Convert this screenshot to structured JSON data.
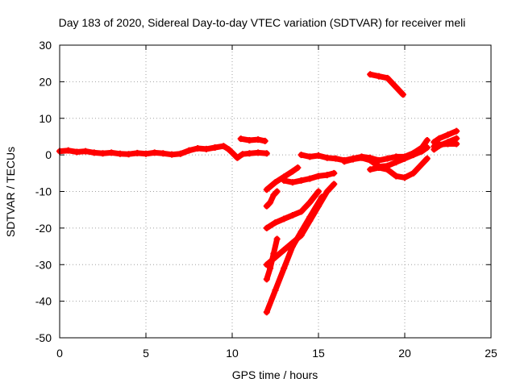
{
  "chart_data": {
    "type": "scatter",
    "title": "Day 183 of 2020, Sidereal Day-to-day VTEC variation (SDTVAR) for receiver meli",
    "xlabel": "GPS time / hours",
    "ylabel": "SDTVAR / TECUs",
    "xlim": [
      0,
      25
    ],
    "ylim": [
      -50,
      30
    ],
    "xticks": [
      0,
      5,
      10,
      15,
      20,
      25
    ],
    "yticks": [
      -50,
      -40,
      -30,
      -20,
      -10,
      0,
      10,
      20,
      30
    ],
    "xtick_labels": [
      "0",
      "5",
      "10",
      "15",
      "20",
      "25"
    ],
    "ytick_labels": [
      "-50",
      "-40",
      "-30",
      "-20",
      "-10",
      "0",
      "10",
      "20",
      "30"
    ],
    "grid": true,
    "marker": "plus",
    "color": "#ff0000",
    "series": [
      {
        "name": "main-baseline",
        "points": [
          [
            0,
            1
          ],
          [
            0.5,
            1.2
          ],
          [
            1,
            0.8
          ],
          [
            1.5,
            1
          ],
          [
            2,
            0.6
          ],
          [
            2.5,
            0.4
          ],
          [
            3,
            0.6
          ],
          [
            3.5,
            0.3
          ],
          [
            4,
            0.2
          ],
          [
            4.5,
            0.5
          ],
          [
            5,
            0.3
          ],
          [
            5.5,
            0.6
          ],
          [
            6,
            0.4
          ],
          [
            6.5,
            0.1
          ],
          [
            7,
            0.3
          ],
          [
            7.5,
            1.2
          ],
          [
            8,
            1.8
          ],
          [
            8.5,
            1.6
          ],
          [
            9,
            2
          ],
          [
            9.5,
            2.4
          ],
          [
            9.8,
            1.5
          ],
          [
            10,
            0.6
          ],
          [
            10.3,
            -0.8
          ],
          [
            10.6,
            0.2
          ],
          [
            11,
            0.4
          ],
          [
            11.5,
            0.6
          ],
          [
            12,
            0.4
          ]
        ]
      },
      {
        "name": "arc-above-11h",
        "points": [
          [
            10.5,
            4.4
          ],
          [
            11,
            4
          ],
          [
            11.5,
            4.2
          ],
          [
            11.9,
            3.8
          ]
        ]
      },
      {
        "name": "arc-afternoon-baseline",
        "points": [
          [
            14,
            0
          ],
          [
            14.5,
            -0.5
          ],
          [
            15,
            -0.2
          ],
          [
            15.5,
            -0.8
          ],
          [
            16,
            -1
          ],
          [
            16.5,
            -1.5
          ],
          [
            17,
            -1
          ],
          [
            17.5,
            -0.5
          ],
          [
            18,
            -0.8
          ],
          [
            18.5,
            -1.5
          ],
          [
            19,
            -1
          ],
          [
            19.5,
            -0.5
          ],
          [
            20,
            -0.5
          ],
          [
            20.5,
            0.5
          ],
          [
            21,
            2
          ],
          [
            21.3,
            4
          ]
        ]
      },
      {
        "name": "arc-mid-afternoon",
        "points": [
          [
            16.5,
            -1.8
          ],
          [
            17,
            -1.2
          ],
          [
            17.5,
            -0.8
          ],
          [
            18,
            -1.5
          ],
          [
            18.5,
            -3.2
          ],
          [
            19,
            -3
          ],
          [
            19.5,
            -2
          ],
          [
            20,
            -1
          ],
          [
            20.5,
            0
          ],
          [
            21,
            1
          ],
          [
            21.3,
            2
          ]
        ]
      },
      {
        "name": "arc-late-dip",
        "points": [
          [
            18,
            -4
          ],
          [
            18.5,
            -3.5
          ],
          [
            19,
            -4
          ],
          [
            19.5,
            -5.8
          ],
          [
            20,
            -6.2
          ],
          [
            20.5,
            -5
          ],
          [
            21,
            -2.5
          ],
          [
            21.3,
            -1
          ]
        ]
      },
      {
        "name": "arc-late-1",
        "points": [
          [
            21.7,
            1.5
          ],
          [
            22,
            2.5
          ],
          [
            22.5,
            3.5
          ],
          [
            23,
            4.5
          ]
        ]
      },
      {
        "name": "arc-late-2",
        "points": [
          [
            21.7,
            3.5
          ],
          [
            22,
            4.5
          ],
          [
            22.5,
            5.5
          ],
          [
            23,
            6.5
          ]
        ]
      },
      {
        "name": "arc-late-3",
        "points": [
          [
            21.7,
            2.3
          ],
          [
            22,
            2.8
          ],
          [
            22.5,
            3
          ],
          [
            23,
            3
          ]
        ]
      },
      {
        "name": "arc-high",
        "points": [
          [
            18,
            22
          ],
          [
            18.5,
            21.5
          ],
          [
            19,
            21
          ],
          [
            19.5,
            18.5
          ],
          [
            19.9,
            16.5
          ]
        ]
      },
      {
        "name": "arc-drop-1",
        "points": [
          [
            12,
            -9.5
          ],
          [
            12.5,
            -7.5
          ],
          [
            13,
            -6
          ],
          [
            13.5,
            -4.5
          ],
          [
            13.8,
            -3.5
          ]
        ]
      },
      {
        "name": "arc-drop-2",
        "points": [
          [
            12,
            -14
          ],
          [
            12.2,
            -13
          ],
          [
            12.4,
            -11
          ],
          [
            12.6,
            -10
          ]
        ]
      },
      {
        "name": "arc-drop-3",
        "points": [
          [
            12,
            -20
          ],
          [
            12.5,
            -18.5
          ],
          [
            13,
            -17.5
          ],
          [
            13.5,
            -16.5
          ],
          [
            14,
            -15.5
          ],
          [
            14.5,
            -13
          ],
          [
            15,
            -10
          ]
        ]
      },
      {
        "name": "arc-drop-4",
        "points": [
          [
            13,
            -7
          ],
          [
            13.5,
            -7.5
          ],
          [
            14,
            -7
          ],
          [
            14.5,
            -6.5
          ],
          [
            15,
            -5.8
          ],
          [
            15.5,
            -5.5
          ],
          [
            15.9,
            -5
          ]
        ]
      },
      {
        "name": "arc-drop-5",
        "points": [
          [
            12,
            -30
          ],
          [
            12.5,
            -28
          ],
          [
            13,
            -26
          ],
          [
            13.5,
            -24
          ],
          [
            14,
            -22
          ],
          [
            14.5,
            -18
          ],
          [
            15,
            -14
          ],
          [
            15.5,
            -10
          ],
          [
            15.9,
            -8
          ]
        ]
      },
      {
        "name": "arc-drop-6",
        "points": [
          [
            12,
            -43
          ],
          [
            12.5,
            -37
          ],
          [
            13,
            -31
          ],
          [
            13.5,
            -25
          ],
          [
            14,
            -21
          ],
          [
            14.5,
            -17
          ],
          [
            15.2,
            -11.5
          ]
        ]
      },
      {
        "name": "arc-drop-7",
        "points": [
          [
            12,
            -34
          ],
          [
            12.2,
            -31
          ],
          [
            12.4,
            -27
          ],
          [
            12.6,
            -23
          ]
        ]
      }
    ]
  }
}
